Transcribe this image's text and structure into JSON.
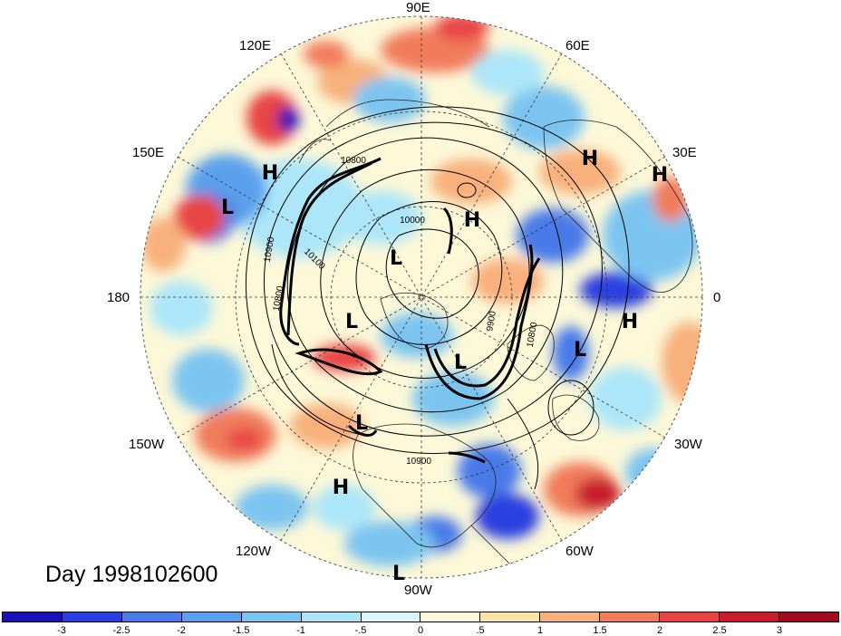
{
  "title": "Day 1998102600",
  "projection": "polar-stereographic-north",
  "longitude_labels": {
    "top": "90E",
    "upper_right_1": "60E",
    "upper_right_2": "30E",
    "right": "0",
    "lower_right_1": "30W",
    "lower_right_2": "60W",
    "bottom": "90W",
    "lower_left_1": "120W",
    "lower_left_2": "150W",
    "left": "180",
    "upper_left_1": "150E",
    "upper_left_2": "120E"
  },
  "pressure_centers": [
    {
      "label": "H"
    },
    {
      "label": "H"
    },
    {
      "label": "H"
    },
    {
      "label": "H"
    },
    {
      "label": "H"
    },
    {
      "label": "H"
    },
    {
      "label": "L"
    },
    {
      "label": "L"
    },
    {
      "label": "L"
    },
    {
      "label": "L"
    },
    {
      "label": "L"
    },
    {
      "label": "L"
    },
    {
      "label": "L"
    }
  ],
  "contour_labels": [
    "10800",
    "10000",
    "10100",
    "10900",
    "10800",
    "9900",
    "10800",
    "10900"
  ],
  "colorbar": {
    "ticks": [
      "-3",
      "-2.5",
      "-2",
      "-1.5",
      "-1",
      "-.5",
      "0",
      ".5",
      "1",
      "1.5",
      "2",
      "2.5",
      "3"
    ],
    "colors": [
      "#1a0fb8",
      "#2a3fe0",
      "#4a7ae8",
      "#5aa0ec",
      "#7cc4f0",
      "#ace6f8",
      "#dcf6fc",
      "#fcf8d8",
      "#fce4a8",
      "#f8b07c",
      "#f07c5c",
      "#e84444",
      "#c81c2c",
      "#a00c1c"
    ]
  }
}
